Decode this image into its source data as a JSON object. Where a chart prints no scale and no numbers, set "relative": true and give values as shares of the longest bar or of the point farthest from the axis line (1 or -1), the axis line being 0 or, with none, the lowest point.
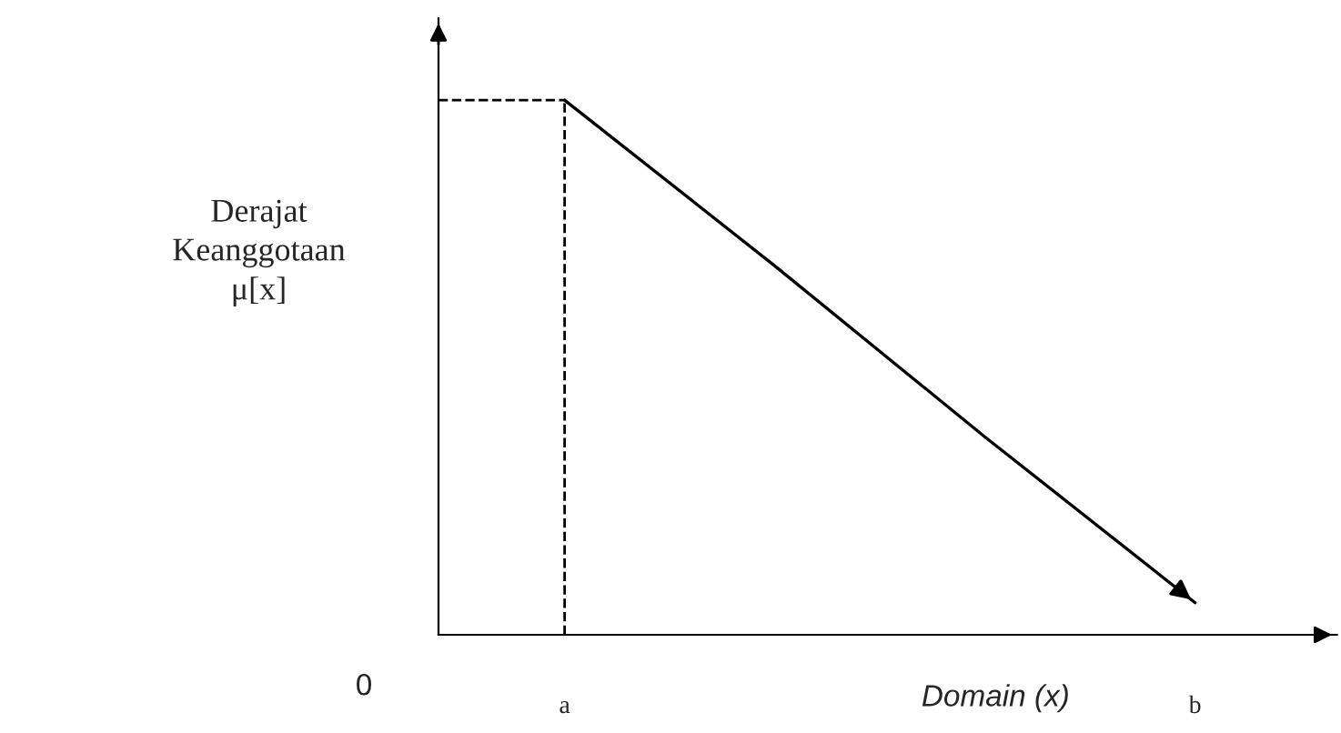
{
  "chart_data": {
    "type": "line",
    "relative": true,
    "xlabel": "Domain (x)",
    "ylabel": "Derajat\nKeanggotaan\nμ[x]",
    "categories": [
      "a",
      null,
      null,
      "b"
    ],
    "series": [
      {
        "color": "#000000",
        "values": [
          1,
          0.69,
          0.37,
          0.06
        ]
      }
    ],
    "annotations": [
      "0"
    ],
    "ref_lines": [
      {
        "axis": "x",
        "value": "a",
        "line_style": "dashed",
        "color": "#000000"
      },
      {
        "axis": "y",
        "value": 1,
        "line_style": "dashed",
        "color": "#000000"
      }
    ],
    "tick_labels": "x",
    "grid": false,
    "legend": false,
    "marker": "none",
    "line_style": "solid"
  }
}
